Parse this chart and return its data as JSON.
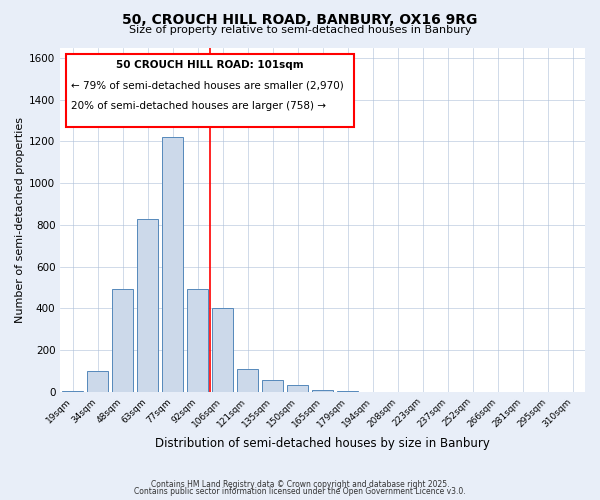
{
  "title": "50, CROUCH HILL ROAD, BANBURY, OX16 9RG",
  "subtitle": "Size of property relative to semi-detached houses in Banbury",
  "xlabel": "Distribution of semi-detached houses by size in Banbury",
  "ylabel": "Number of semi-detached properties",
  "bar_labels": [
    "19sqm",
    "34sqm",
    "48sqm",
    "63sqm",
    "77sqm",
    "92sqm",
    "106sqm",
    "121sqm",
    "135sqm",
    "150sqm",
    "165sqm",
    "179sqm",
    "194sqm",
    "208sqm",
    "223sqm",
    "237sqm",
    "252sqm",
    "266sqm",
    "281sqm",
    "295sqm",
    "310sqm"
  ],
  "bar_values": [
    5,
    100,
    490,
    830,
    1220,
    490,
    400,
    110,
    55,
    30,
    10,
    5,
    0,
    0,
    0,
    0,
    0,
    0,
    0,
    0,
    0
  ],
  "bar_color": "#ccd9ea",
  "bar_edge_color": "#5588bb",
  "ylim": [
    0,
    1650
  ],
  "yticks": [
    0,
    200,
    400,
    600,
    800,
    1000,
    1200,
    1400,
    1600
  ],
  "property_line_x": 5.5,
  "annotation_title": "50 CROUCH HILL ROAD: 101sqm",
  "annotation_line1": "← 79% of semi-detached houses are smaller (2,970)",
  "annotation_line2": "20% of semi-detached houses are larger (758) →",
  "footer_line1": "Contains HM Land Registry data © Crown copyright and database right 2025.",
  "footer_line2": "Contains public sector information licensed under the Open Government Licence v3.0.",
  "background_color": "#e8eef8",
  "plot_bg_color": "#ffffff",
  "grid_color": "#adc0d8"
}
